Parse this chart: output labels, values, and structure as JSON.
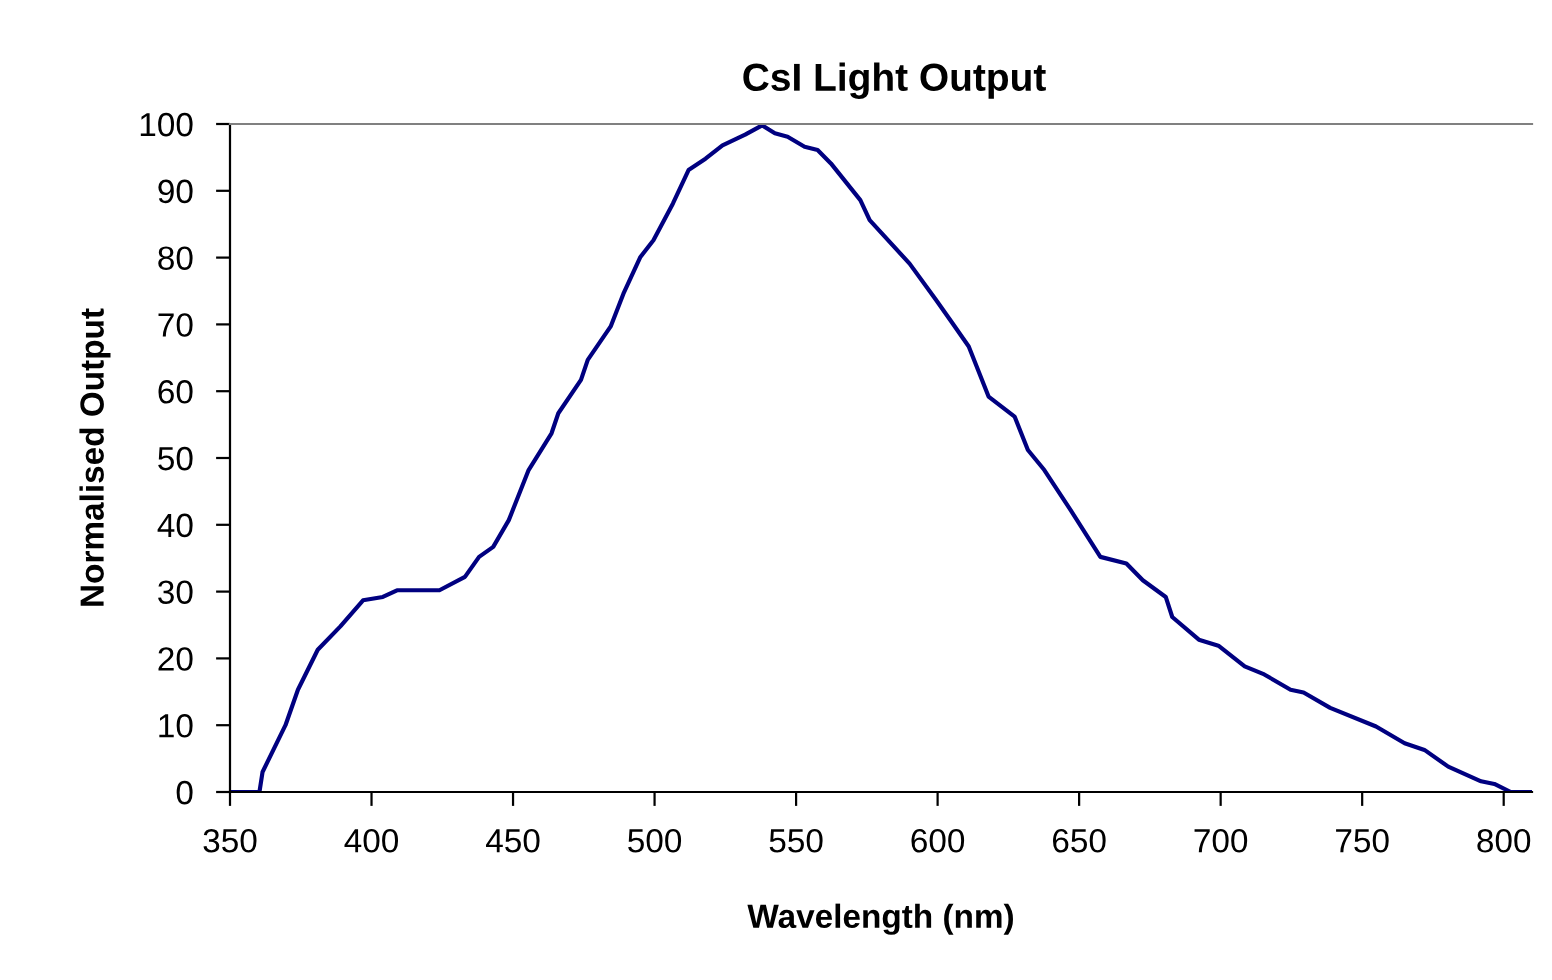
{
  "chart_data": {
    "type": "line",
    "title": "CsI Light Output",
    "xlabel": "Wavelength (nm)",
    "ylabel": "Normalised Output",
    "xlim": [
      350,
      810
    ],
    "xticks": [
      350,
      400,
      450,
      500,
      550,
      600,
      650,
      700,
      750,
      800
    ],
    "ylim": [
      0,
      100
    ],
    "yticks": [
      0,
      10,
      20,
      30,
      40,
      50,
      60,
      70,
      80,
      90,
      100
    ],
    "series": [
      {
        "color": "#000080",
        "x": [
          350,
          360.4,
          361.5,
          369.6,
          374,
          381,
          389,
          397,
          404,
          409,
          424,
          433,
          438,
          443,
          448.5,
          455.5,
          463.6,
          466,
          474,
          476.4,
          484.5,
          489,
          495,
          499.6,
          506.5,
          512,
          518,
          524,
          532,
          538,
          542.5,
          547,
          553,
          557.6,
          562.3,
          572.7,
          576,
          590.1,
          599.4,
          605.2,
          611,
          618,
          627.2,
          631.9,
          637.7,
          647,
          657.5,
          666.7,
          672.5,
          680.6,
          682.9,
          692.3,
          699.2,
          708.5,
          715.4,
          724.7,
          729.3,
          738.7,
          754.9,
          765,
          772,
          780.4,
          792,
          796.7,
          802.5,
          810
        ],
        "values": [
          0,
          0,
          3,
          10,
          15.3,
          21.3,
          24.8,
          28.7,
          29.2,
          30.2,
          30.2,
          32.2,
          35.2,
          36.7,
          40.7,
          48.2,
          53.7,
          56.7,
          61.7,
          64.7,
          69.7,
          74.6,
          80.1,
          82.6,
          88.1,
          93.1,
          94.8,
          96.8,
          98.4,
          99.8,
          98.6,
          98.1,
          96.6,
          96.1,
          94.1,
          88.6,
          85.6,
          79.1,
          73.7,
          70.2,
          66.7,
          59.2,
          56.2,
          51.2,
          48.2,
          42.2,
          35.2,
          34.2,
          31.7,
          29.2,
          26.2,
          22.8,
          21.9,
          18.8,
          17.6,
          15.3,
          14.9,
          12.6,
          9.8,
          7.3,
          6.3,
          3.8,
          1.6,
          1.2,
          0,
          0
        ]
      }
    ]
  }
}
